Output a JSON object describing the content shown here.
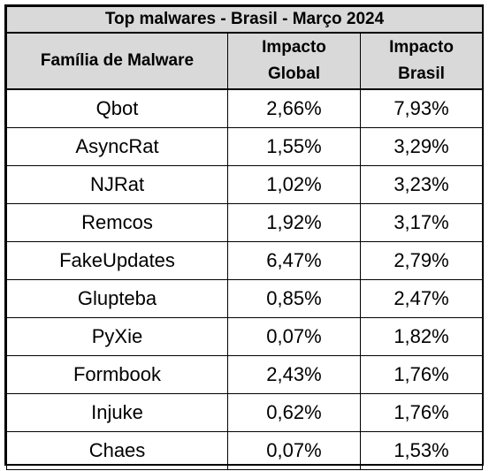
{
  "chart_data": {
    "type": "table",
    "title": "Top malwares - Brasil - Março 2024",
    "columns": [
      {
        "label_lines": [
          "Família de Malware"
        ]
      },
      {
        "label_lines": [
          "Impacto",
          "Global"
        ]
      },
      {
        "label_lines": [
          "Impacto",
          "Brasil"
        ]
      }
    ],
    "rows": [
      {
        "family": "Qbot",
        "global": "2,66%",
        "brasil": "7,93%"
      },
      {
        "family": "AsyncRat",
        "global": "1,55%",
        "brasil": "3,29%"
      },
      {
        "family": "NJRat",
        "global": "1,02%",
        "brasil": "3,23%"
      },
      {
        "family": "Remcos",
        "global": "1,92%",
        "brasil": "3,17%"
      },
      {
        "family": "FakeUpdates",
        "global": "6,47%",
        "brasil": "2,79%"
      },
      {
        "family": "Glupteba",
        "global": "0,85%",
        "brasil": "2,47%"
      },
      {
        "family": "PyXie",
        "global": "0,07%",
        "brasil": "1,82%"
      },
      {
        "family": "Formbook",
        "global": "2,43%",
        "brasil": "1,76%"
      },
      {
        "family": "Injuke",
        "global": "0,62%",
        "brasil": "1,76%"
      },
      {
        "family": "Chaes",
        "global": "0,07%",
        "brasil": "1,53%"
      }
    ],
    "colors": {
      "header_bg": "#d9d9d9",
      "body_bg": "#ffffff",
      "border": "#000000"
    }
  }
}
